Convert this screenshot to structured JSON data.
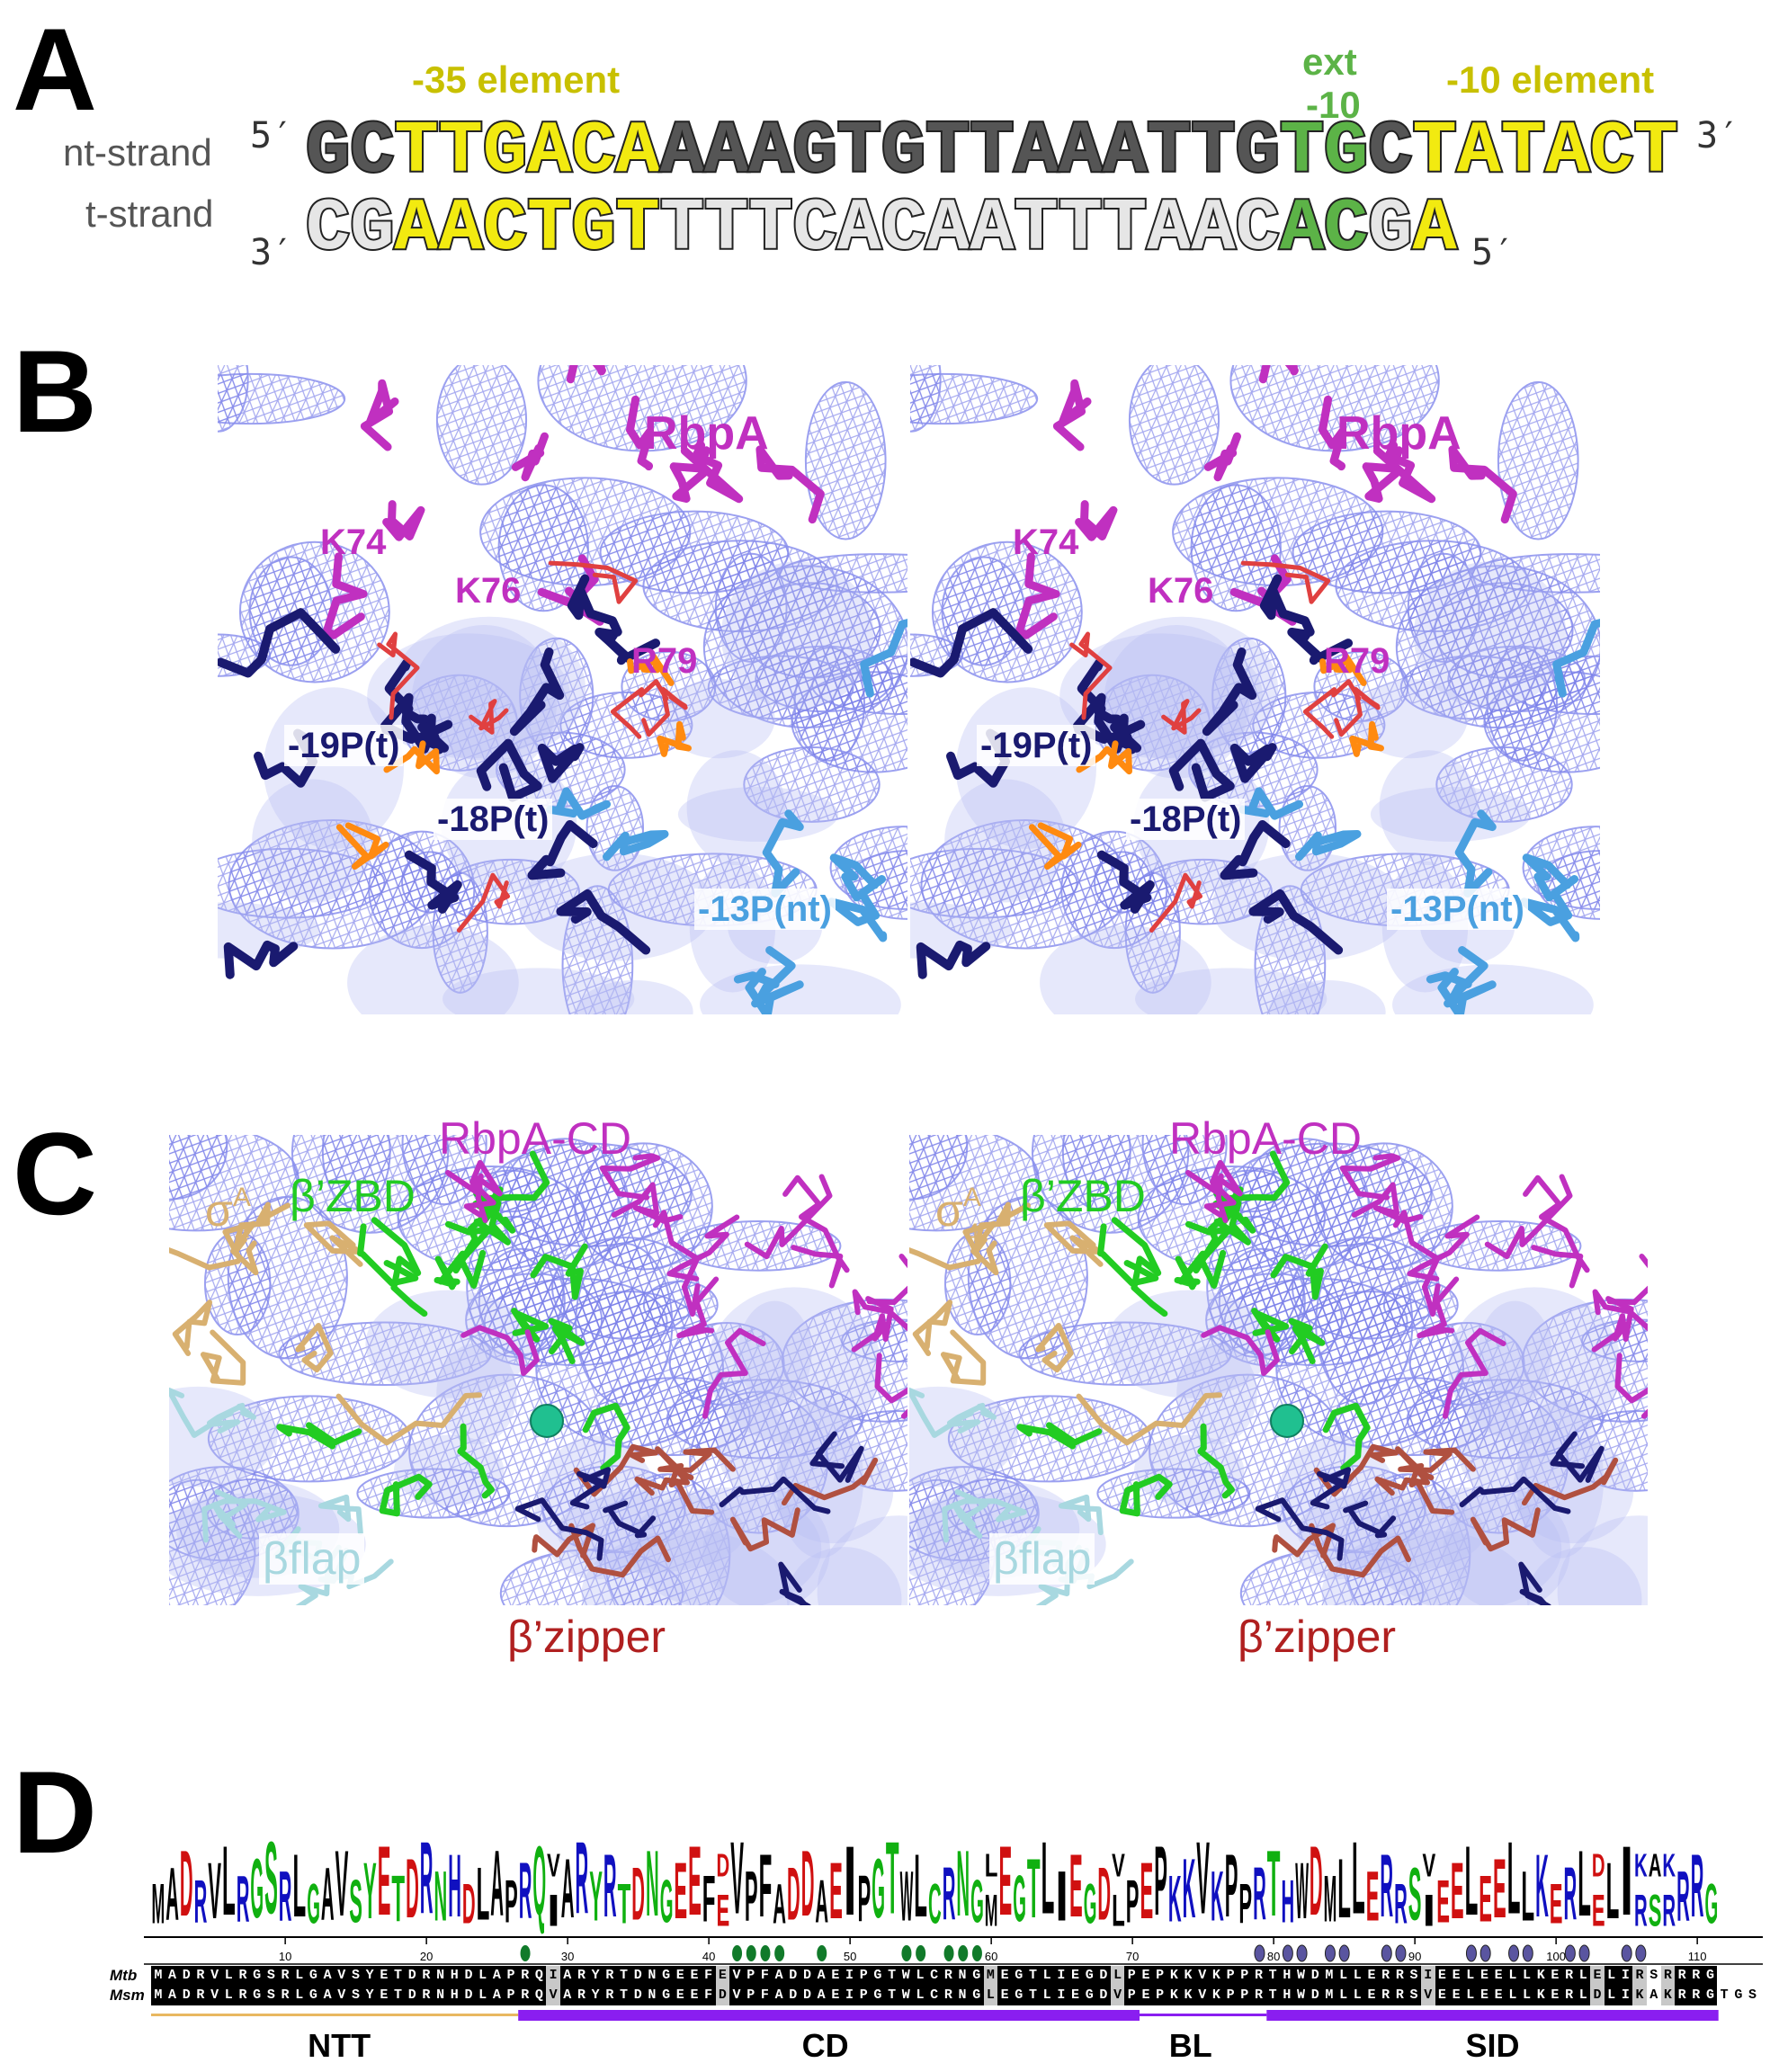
{
  "panelA": {
    "label": "A",
    "minus35": "-35 element",
    "ext10_line1": "ext",
    "ext10_line2": "-10",
    "minus10": "-10 element",
    "nt_label": "nt-strand",
    "t_label": "t-strand",
    "nt_5prime": "5′",
    "nt_3prime": "3′",
    "t_3prime": "3′",
    "t_5prime": "5′",
    "nt_sequence": "GCTTGACAAAAGTGTTAAATTGTGCTATACT",
    "t_sequence": "CGAACTGTTTTCACAATTTAACACGA",
    "nt_colors": "ddyyyyyyddddddddddddddggdyyyyyy",
    "t_colors": "llyyyyyyllllllllllllllggly",
    "colors": {
      "dark": "#555555",
      "light": "#e6e6e6",
      "yellow": "#f2ea10",
      "green": "#5cb347",
      "label_yellow": "#c8c000",
      "label_green": "#5cb347"
    }
  },
  "panelB": {
    "label": "B",
    "labels": {
      "rbpa": "RbpA",
      "k74": "K74",
      "k76": "K76",
      "r79": "R79",
      "p19": "-19P(t)",
      "p18": "-18P(t)",
      "p13": "-13P(nt)"
    },
    "colors": {
      "rbpa": "#c030c0",
      "t_strand": "#1a1a70",
      "nt_strand": "#4aa0e0",
      "mesh": "#7a80e8"
    }
  },
  "panelC": {
    "label": "C",
    "labels": {
      "rbpa_cd": "RbpA-CD",
      "zbd": "β’ZBD",
      "sigma": "σ",
      "sigma_sup": "A",
      "sigma_sub": "4",
      "bflap": "βflap",
      "zipper": "β’zipper"
    },
    "colors": {
      "rbpa_cd": "#c030c0",
      "zbd": "#22cc22",
      "sigma": "#d8b070",
      "bflap": "#a8d8e0",
      "zipper": "#b02020"
    }
  },
  "panelD": {
    "label": "D",
    "rows": [
      {
        "name": "Mtb",
        "sequence": "MADRVLRGSRLGAVSYETDRNHDLAPRQIARYRTDNGEEFEVPFADDAEIPGTWLCRNGMEGTLIEGDLPEPKKVKPPRTHWDMLLERRSIEELEELLKERLELIRSRRRG"
      },
      {
        "name": "Msm",
        "sequence": "MADRVLRGSRLGAVSYETDRNHDLAPRQVARYRTDNGEEFDVPFADDAEIPGTWLCRNGLEGTLIEGDVPEPKKVKPPRTHWDMLLERRSVEELEELLKERLDLIKAKRRGTGS"
      }
    ],
    "ruler": [
      10,
      20,
      30,
      40,
      50,
      60,
      70,
      80,
      90,
      100,
      110
    ],
    "similar_positions": [
      29,
      41,
      60,
      69,
      91,
      103,
      106,
      108
    ],
    "different_positions": [
      107
    ],
    "green_dots": [
      27,
      42,
      43,
      44,
      45,
      48,
      54,
      55,
      57,
      58,
      59
    ],
    "purple_dots": [
      79,
      81,
      82,
      84,
      85,
      88,
      89,
      94,
      95,
      97,
      98,
      101,
      102,
      105,
      106
    ],
    "domains": [
      {
        "name": "NTT",
        "start": 1,
        "end": 26,
        "style": "thin",
        "color": "#e8b860"
      },
      {
        "name": "CD",
        "start": 27,
        "end": 70,
        "style": "thick",
        "color": "#8a1ef0"
      },
      {
        "name": "BL",
        "start": 70,
        "end": 79,
        "style": "thin",
        "color": "#8a1ef0"
      },
      {
        "name": "SID",
        "start": 80,
        "end": 111,
        "style": "thick",
        "color": "#8a1ef0"
      }
    ],
    "residue_colors": {
      "acidic": "#d01010",
      "basic": "#1010c0",
      "polar": "#10b010",
      "hydrophobic": "#000000",
      "dot_green": "#117a2a",
      "dot_purple": "#5a55a0"
    }
  }
}
